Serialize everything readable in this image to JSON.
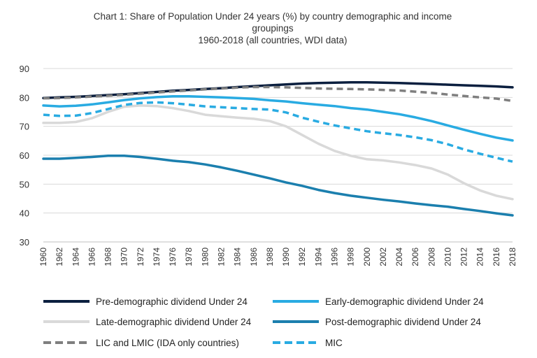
{
  "chart_data": {
    "type": "line",
    "title_line1": "Chart 1: Share of Population Under 24 years (%) by country demographic and income",
    "title_line2": "groupings",
    "title_line3": "1960-2018 (all countries, WDI data)",
    "xlabel": "",
    "ylabel": "",
    "ylim": [
      30,
      90
    ],
    "yticks": [
      "30",
      "40",
      "50",
      "60",
      "70",
      "80",
      "90"
    ],
    "grid": true,
    "legend_position": "bottom",
    "x": [
      1960,
      1962,
      1964,
      1966,
      1968,
      1970,
      1972,
      1974,
      1976,
      1978,
      1980,
      1982,
      1984,
      1986,
      1988,
      1990,
      1992,
      1994,
      1996,
      1998,
      2000,
      2002,
      2004,
      2006,
      2008,
      2010,
      2012,
      2014,
      2016,
      2018
    ],
    "series": [
      {
        "name": "Pre-demographic dividend Under 24",
        "color": "#0b1f3f",
        "dash": false,
        "values": [
          79.8,
          80.0,
          80.2,
          80.5,
          80.8,
          81.1,
          81.5,
          81.9,
          82.3,
          82.6,
          82.9,
          83.2,
          83.6,
          83.9,
          84.2,
          84.5,
          84.8,
          85.0,
          85.1,
          85.2,
          85.2,
          85.1,
          85.0,
          84.8,
          84.6,
          84.4,
          84.2,
          84.0,
          83.8,
          83.5
        ]
      },
      {
        "name": "Early-demographic dividend Under 24",
        "color": "#29abe2",
        "dash": false,
        "values": [
          77.2,
          76.9,
          77.1,
          77.6,
          78.3,
          79.1,
          79.7,
          80.1,
          80.4,
          80.4,
          80.2,
          80.0,
          79.8,
          79.5,
          79.0,
          78.6,
          78.0,
          77.5,
          77.0,
          76.3,
          75.8,
          75.0,
          74.2,
          73.1,
          71.8,
          70.3,
          68.8,
          67.4,
          66.1,
          65.1
        ]
      },
      {
        "name": "Late-demographic dividend Under 24",
        "color": "#d9d9d9",
        "dash": false,
        "values": [
          71.2,
          71.2,
          71.5,
          72.8,
          75.0,
          76.8,
          77.2,
          77.0,
          76.3,
          75.3,
          74.0,
          73.5,
          73.0,
          72.6,
          71.8,
          70.0,
          67.0,
          64.0,
          61.5,
          59.8,
          58.6,
          58.2,
          57.5,
          56.6,
          55.4,
          53.3,
          50.3,
          47.8,
          46.0,
          44.8
        ]
      },
      {
        "name": "Post-demographic dividend Under 24",
        "color": "#1b7fae",
        "dash": false,
        "values": [
          58.8,
          58.8,
          59.1,
          59.4,
          59.8,
          59.8,
          59.4,
          58.8,
          58.1,
          57.6,
          56.8,
          55.8,
          54.6,
          53.3,
          52.0,
          50.6,
          49.4,
          48.0,
          46.9,
          46.0,
          45.3,
          44.6,
          44.0,
          43.3,
          42.7,
          42.2,
          41.4,
          40.7,
          39.9,
          39.2
        ]
      },
      {
        "name": "LIC and LMIC (IDA only countries)",
        "color": "#7f7f7f",
        "dash": true,
        "values": [
          79.7,
          79.8,
          80.0,
          80.3,
          80.6,
          80.9,
          81.3,
          81.7,
          82.1,
          82.4,
          82.8,
          83.1,
          83.4,
          83.6,
          83.6,
          83.5,
          83.3,
          83.1,
          83.0,
          82.9,
          82.8,
          82.6,
          82.4,
          82.0,
          81.6,
          81.0,
          80.5,
          80.0,
          79.6,
          78.8
        ]
      },
      {
        "name": "MIC",
        "color": "#29abe2",
        "dash": true,
        "values": [
          74.0,
          73.6,
          73.7,
          74.6,
          76.0,
          77.4,
          78.1,
          78.3,
          78.0,
          77.5,
          76.9,
          76.6,
          76.3,
          76.0,
          75.8,
          74.8,
          73.0,
          71.6,
          70.3,
          69.3,
          68.3,
          67.6,
          67.0,
          66.2,
          65.2,
          63.8,
          62.0,
          60.5,
          59.1,
          57.8
        ]
      }
    ]
  }
}
